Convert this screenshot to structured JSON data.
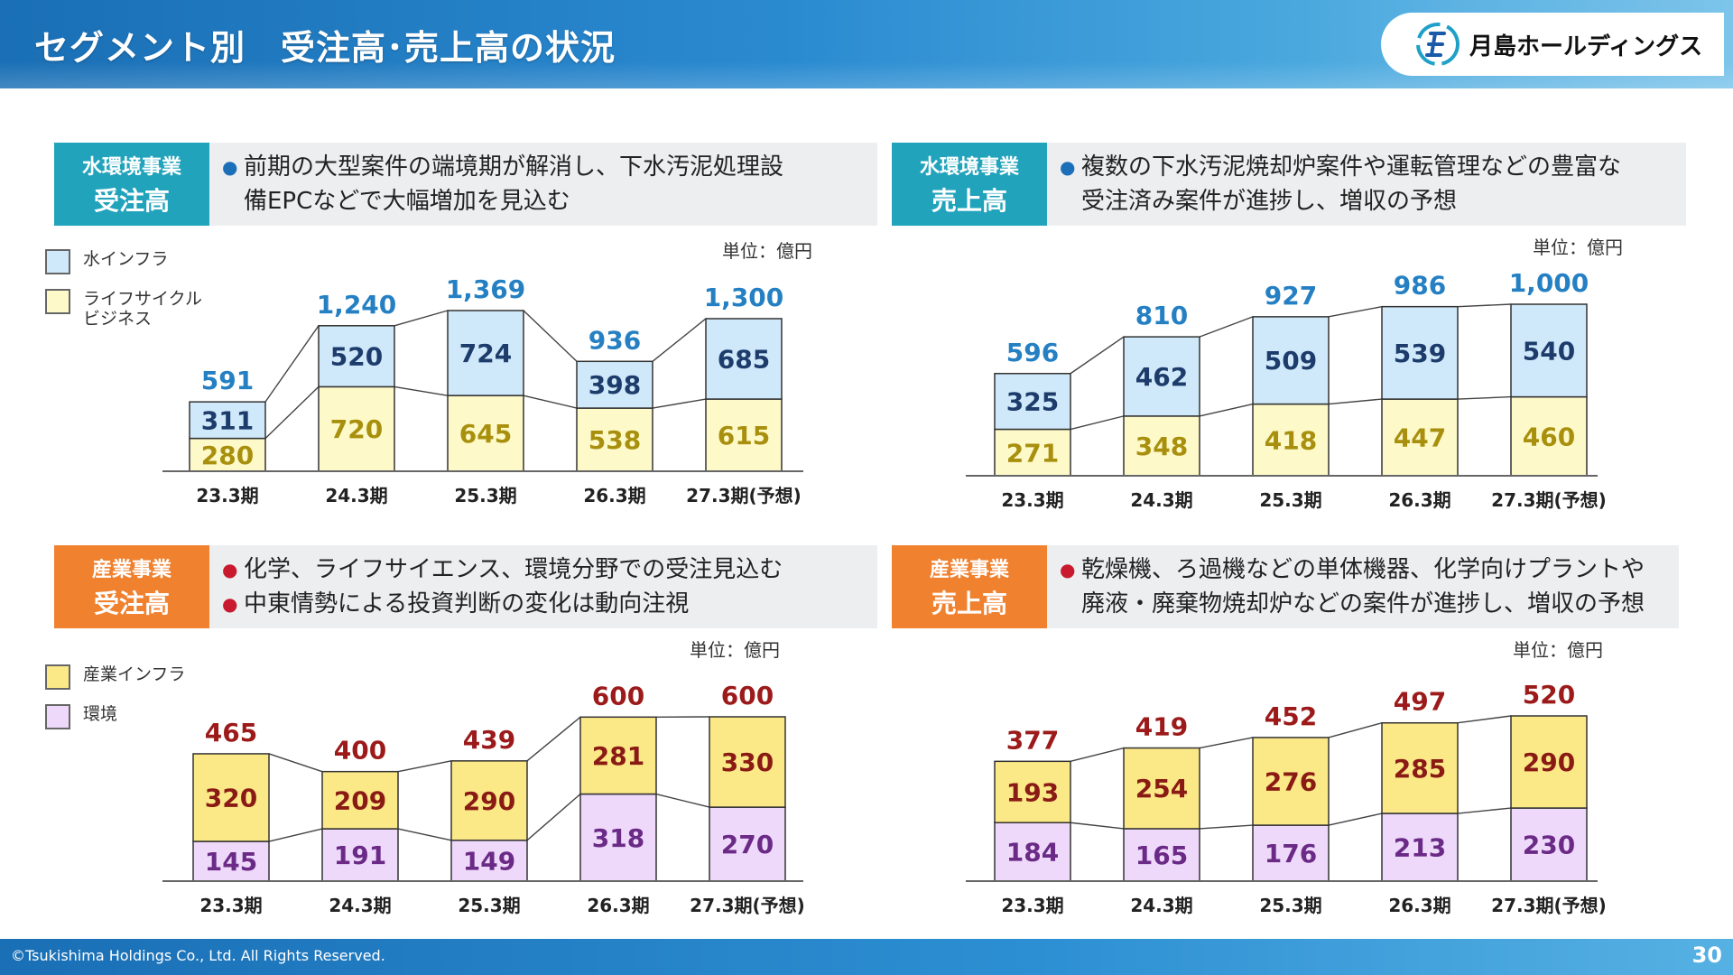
{
  "header": {
    "title": "セグメント別　受注高･売上高の状況",
    "company": "月島ホールディングス"
  },
  "panels": {
    "wo": {
      "tag_line1": "水環境事業",
      "tag_line2": "受注高",
      "desc": [
        {
          "text": "前期の大型案件の端境期が解消し、下水汚泥処理設",
          "cont": "備EPCなどで大幅増加を見込む"
        }
      ],
      "unit": "単位：億円",
      "legend": [
        "水インフラ",
        "ライフサイクル",
        "ビジネス"
      ]
    },
    "ws": {
      "tag_line1": "水環境事業",
      "tag_line2": "売上高",
      "desc": [
        {
          "text": "複数の下水汚泥焼却炉案件や運転管理などの豊富な",
          "cont": "受注済み案件が進捗し、増収の予想"
        }
      ],
      "unit": "単位：億円"
    },
    "io": {
      "tag_line1": "産業事業",
      "tag_line2": "受注高",
      "desc": [
        {
          "text": "化学、ライフサイエンス、環境分野での受注見込む"
        },
        {
          "text": "中東情勢による投資判断の変化は動向注視"
        }
      ],
      "unit": "単位：億円",
      "legend": [
        "産業インフラ",
        "環境"
      ]
    },
    "is": {
      "tag_line1": "産業事業",
      "tag_line2": "売上高",
      "desc": [
        {
          "text": "乾燥機、ろ過機などの単体機器、化学向けプラントや",
          "cont": "廃液・廃棄物焼却炉などの案件が進捗し、増収の予想"
        }
      ],
      "unit": "単位：億円"
    }
  },
  "chart_data": [
    {
      "id": "wo",
      "type": "bar",
      "stacked": true,
      "title": "水環境事業 受注高",
      "categories": [
        "23.3期",
        "24.3期",
        "25.3期",
        "26.3期",
        "27.3期(予想)"
      ],
      "series": [
        {
          "name": "ライフサイクルビジネス",
          "values": [
            280,
            720,
            645,
            538,
            615
          ],
          "color": "#fef9c9",
          "label_color": "#a8900e"
        },
        {
          "name": "水インフラ",
          "values": [
            311,
            520,
            724,
            398,
            685
          ],
          "color": "#cfe9fa",
          "label_color": "#1d3c6b"
        }
      ],
      "totals": [
        591,
        1240,
        1369,
        936,
        1300
      ],
      "total_labels": [
        "591",
        "1,240",
        "1,369",
        "936",
        "1,300"
      ],
      "total_color": "#2580c3",
      "ylim": [
        0,
        1369
      ]
    },
    {
      "id": "ws",
      "type": "bar",
      "stacked": true,
      "title": "水環境事業 売上高",
      "categories": [
        "23.3期",
        "24.3期",
        "25.3期",
        "26.3期",
        "27.3期(予想)"
      ],
      "series": [
        {
          "name": "ライフサイクルビジネス",
          "values": [
            271,
            348,
            418,
            447,
            460
          ],
          "color": "#fef9c9",
          "label_color": "#a8900e"
        },
        {
          "name": "水インフラ",
          "values": [
            325,
            462,
            509,
            539,
            540
          ],
          "color": "#cfe9fa",
          "label_color": "#1d3c6b"
        }
      ],
      "totals": [
        596,
        810,
        927,
        986,
        1000
      ],
      "total_labels": [
        "596",
        "810",
        "927",
        "986",
        "1,000"
      ],
      "total_color": "#2580c3",
      "ylim": [
        0,
        1000
      ]
    },
    {
      "id": "io",
      "type": "bar",
      "stacked": true,
      "title": "産業事業 受注高",
      "categories": [
        "23.3期",
        "24.3期",
        "25.3期",
        "26.3期",
        "27.3期(予想)"
      ],
      "series": [
        {
          "name": "環境",
          "values": [
            145,
            191,
            149,
            318,
            270
          ],
          "color": "#eed9fb",
          "label_color": "#6a2a86"
        },
        {
          "name": "産業インフラ",
          "values": [
            320,
            209,
            290,
            281,
            330
          ],
          "color": "#fbe887",
          "label_color": "#8a1a14"
        }
      ],
      "totals": [
        465,
        400,
        439,
        600,
        600
      ],
      "total_labels": [
        "465",
        "400",
        "439",
        "600",
        "600"
      ],
      "total_color": "#9c1a1a",
      "ylim": [
        0,
        600
      ]
    },
    {
      "id": "is",
      "type": "bar",
      "stacked": true,
      "title": "産業事業 売上高",
      "categories": [
        "23.3期",
        "24.3期",
        "25.3期",
        "26.3期",
        "27.3期(予想)"
      ],
      "series": [
        {
          "name": "環境",
          "values": [
            184,
            165,
            176,
            213,
            230
          ],
          "color": "#eed9fb",
          "label_color": "#6a2a86"
        },
        {
          "name": "産業インフラ",
          "values": [
            193,
            254,
            276,
            285,
            290
          ],
          "color": "#fbe887",
          "label_color": "#8a1a14"
        }
      ],
      "totals": [
        377,
        419,
        452,
        497,
        520
      ],
      "total_labels": [
        "377",
        "419",
        "452",
        "497",
        "520"
      ],
      "total_color": "#9c1a1a",
      "ylim": [
        0,
        520
      ]
    }
  ],
  "footer": {
    "copyright": "©Tsukishima Holdings Co., Ltd. All Rights Reserved.",
    "page": "30"
  }
}
